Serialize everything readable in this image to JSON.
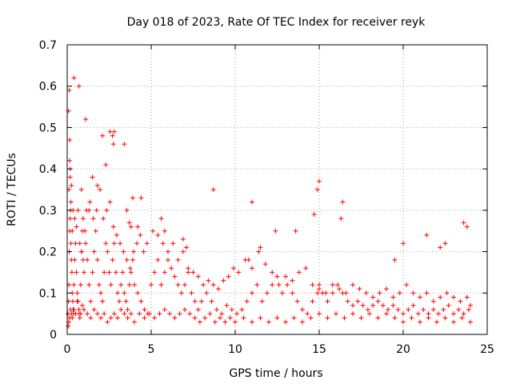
{
  "chart_data": {
    "type": "scatter",
    "title": "Day 018 of 2023, Rate Of TEC Index for receiver reyk",
    "xlabel": "GPS time / hours",
    "ylabel": "ROTI / TECUs",
    "xlim": [
      0,
      25
    ],
    "ylim": [
      0,
      0.7
    ],
    "xticks": [
      "0",
      "5",
      "10",
      "15",
      "20",
      "25"
    ],
    "yticks": [
      "0",
      "0.1",
      "0.2",
      "0.3",
      "0.4",
      "0.5",
      "0.6",
      "0.7"
    ],
    "grid": true,
    "marker": "+",
    "color": "#ff0000",
    "series": [
      {
        "x": [
          0.05,
          0.08,
          0.1,
          0.12,
          0.15,
          0.18,
          0.2,
          0.22,
          0.25,
          0.28,
          0.3,
          0.33,
          0.35,
          0.38,
          0.4,
          0.45,
          0.5,
          0.55,
          0.6,
          0.65,
          0.7,
          0.75,
          0.8,
          0.85,
          0.9,
          0.95,
          1.0,
          1.1,
          1.2,
          1.3,
          1.4,
          1.5,
          1.6,
          1.7,
          1.8,
          1.9,
          2.0,
          2.1,
          2.2,
          2.3,
          2.4,
          2.5,
          2.6,
          2.7,
          2.8,
          2.9,
          3.0,
          3.1,
          3.2,
          3.3,
          3.4,
          3.5,
          3.6,
          3.7,
          3.8,
          3.9,
          4.0,
          4.2,
          4.4,
          4.6,
          4.8,
          5.0,
          5.2,
          5.4,
          5.6,
          5.8,
          6.0,
          6.2,
          6.4,
          6.6,
          6.8,
          7.0,
          7.2,
          7.4,
          7.6,
          7.8,
          8.0,
          8.3,
          8.6,
          8.9,
          9.2,
          9.5,
          9.8,
          10.1,
          10.4,
          10.7,
          11.0,
          11.3,
          11.6,
          11.9,
          12.2,
          12.5,
          12.8,
          13.1,
          13.4,
          13.7,
          14.0,
          14.3,
          14.6,
          14.9,
          15.0,
          15.2,
          15.5,
          15.8,
          16.1,
          16.4,
          16.7,
          17.0,
          17.3,
          17.6,
          17.9,
          18.2,
          18.5,
          18.8,
          19.1,
          19.4,
          19.7,
          20.0,
          20.3,
          20.6,
          20.9,
          21.2,
          21.5,
          21.8,
          22.1,
          22.4,
          22.7,
          23.0,
          23.3,
          23.6,
          23.9,
          0.1,
          0.15,
          0.2,
          0.25,
          0.3,
          0.4,
          0.5,
          0.6,
          0.7,
          0.8,
          0.9,
          1.0,
          1.2,
          1.4,
          1.6,
          1.8,
          2.0,
          2.2,
          2.4,
          2.6,
          2.8,
          3.0,
          3.2,
          3.4,
          3.6,
          3.8,
          4.0,
          4.3,
          4.6,
          4.9,
          5.2,
          5.5,
          5.8,
          6.1,
          6.4,
          6.7,
          7.0,
          7.3,
          7.6,
          7.9,
          8.2,
          8.5,
          8.8,
          9.1,
          9.4,
          9.7,
          10.0,
          10.5,
          11.0,
          11.5,
          12.0,
          12.5,
          13.0,
          13.5,
          14.0,
          14.5,
          15.0,
          15.5,
          16.0,
          16.5,
          17.0,
          17.5,
          18.0,
          18.5,
          19.0,
          19.5,
          20.0,
          20.5,
          21.0,
          21.5,
          22.0,
          22.5,
          23.0,
          23.5,
          24.0,
          0.06,
          0.1,
          0.14,
          0.18,
          0.22,
          0.3,
          0.35,
          0.45,
          0.55,
          0.65,
          0.75,
          0.85,
          0.95,
          1.05,
          1.15,
          1.35,
          1.55,
          1.75,
          1.95,
          2.15,
          2.35,
          2.55,
          2.75,
          2.95,
          3.15,
          3.35,
          3.55,
          3.75,
          3.95,
          4.15,
          4.35,
          4.55,
          4.75,
          5.1,
          5.4,
          5.7,
          6.0,
          6.3,
          6.6,
          6.9,
          7.2,
          7.5,
          7.8,
          8.1,
          8.4,
          8.7,
          9.0,
          9.3,
          9.6,
          9.9,
          10.2,
          10.6,
          11.0,
          11.4,
          11.8,
          12.2,
          12.6,
          13.0,
          13.4,
          13.8,
          14.2,
          14.6,
          15.0,
          15.4,
          15.8,
          16.2,
          16.6,
          17.0,
          17.4,
          17.8,
          18.2,
          18.6,
          19.0,
          19.4,
          19.8,
          20.2,
          20.6,
          21.0,
          21.4,
          21.8,
          22.2,
          22.6,
          23.0,
          23.4,
          23.8,
          24.0,
          0.08,
          0.12,
          0.15,
          0.18,
          0.25,
          0.4,
          0.7,
          0.85,
          1.1,
          1.3,
          1.5,
          1.8,
          2.1,
          2.3,
          2.55,
          2.7,
          2.75,
          2.8,
          3.4,
          3.55,
          3.7,
          3.8,
          3.9,
          4.2,
          4.4,
          5.6,
          5.8,
          6.9,
          7.1,
          8.7,
          10.8,
          11.0,
          11.5,
          12.4,
          13.6,
          14.7,
          14.9,
          15.0,
          16.3,
          16.4,
          19.5,
          20.0,
          21.4,
          22.2,
          22.5,
          23.6,
          23.8
        ],
        "y": [
          0.05,
          0.08,
          0.12,
          0.2,
          0.25,
          0.28,
          0.3,
          0.22,
          0.18,
          0.15,
          0.1,
          0.08,
          0.06,
          0.05,
          0.12,
          0.18,
          0.22,
          0.15,
          0.1,
          0.08,
          0.05,
          0.04,
          0.12,
          0.2,
          0.25,
          0.18,
          0.15,
          0.22,
          0.18,
          0.12,
          0.08,
          0.15,
          0.2,
          0.25,
          0.18,
          0.12,
          0.1,
          0.08,
          0.15,
          0.22,
          0.2,
          0.15,
          0.12,
          0.18,
          0.22,
          0.15,
          0.1,
          0.08,
          0.12,
          0.15,
          0.1,
          0.08,
          0.06,
          0.12,
          0.15,
          0.18,
          0.12,
          0.1,
          0.08,
          0.06,
          0.05,
          0.12,
          0.15,
          0.18,
          0.12,
          0.15,
          0.18,
          0.16,
          0.14,
          0.12,
          0.1,
          0.12,
          0.15,
          0.1,
          0.08,
          0.06,
          0.08,
          0.1,
          0.08,
          0.06,
          0.05,
          0.07,
          0.06,
          0.05,
          0.06,
          0.08,
          0.1,
          0.12,
          0.08,
          0.1,
          0.12,
          0.14,
          0.1,
          0.12,
          0.1,
          0.08,
          0.06,
          0.05,
          0.08,
          0.1,
          0.12,
          0.1,
          0.08,
          0.1,
          0.12,
          0.1,
          0.08,
          0.07,
          0.08,
          0.07,
          0.06,
          0.07,
          0.08,
          0.07,
          0.06,
          0.07,
          0.06,
          0.05,
          0.06,
          0.07,
          0.05,
          0.06,
          0.05,
          0.06,
          0.05,
          0.06,
          0.07,
          0.05,
          0.06,
          0.05,
          0.06,
          0.03,
          0.04,
          0.06,
          0.05,
          0.04,
          0.06,
          0.05,
          0.08,
          0.06,
          0.05,
          0.07,
          0.06,
          0.05,
          0.04,
          0.06,
          0.05,
          0.04,
          0.05,
          0.03,
          0.04,
          0.05,
          0.04,
          0.06,
          0.05,
          0.04,
          0.05,
          0.03,
          0.05,
          0.04,
          0.05,
          0.04,
          0.05,
          0.06,
          0.05,
          0.04,
          0.05,
          0.06,
          0.05,
          0.04,
          0.03,
          0.04,
          0.05,
          0.03,
          0.04,
          0.03,
          0.04,
          0.03,
          0.04,
          0.03,
          0.04,
          0.03,
          0.04,
          0.03,
          0.04,
          0.03,
          0.04,
          0.05,
          0.04,
          0.05,
          0.04,
          0.05,
          0.04,
          0.05,
          0.04,
          0.05,
          0.04,
          0.03,
          0.04,
          0.03,
          0.04,
          0.03,
          0.04,
          0.03,
          0.04,
          0.03,
          0.02,
          0.35,
          0.42,
          0.38,
          0.32,
          0.25,
          0.3,
          0.28,
          0.26,
          0.3,
          0.22,
          0.2,
          0.28,
          0.25,
          0.3,
          0.32,
          0.28,
          0.3,
          0.35,
          0.28,
          0.3,
          0.32,
          0.26,
          0.24,
          0.22,
          0.2,
          0.18,
          0.16,
          0.2,
          0.22,
          0.24,
          0.2,
          0.22,
          0.25,
          0.24,
          0.22,
          0.2,
          0.22,
          0.18,
          0.2,
          0.16,
          0.15,
          0.14,
          0.12,
          0.13,
          0.12,
          0.11,
          0.13,
          0.14,
          0.16,
          0.15,
          0.18,
          0.16,
          0.2,
          0.17,
          0.15,
          0.12,
          0.14,
          0.13,
          0.15,
          0.16,
          0.12,
          0.11,
          0.1,
          0.12,
          0.11,
          0.1,
          0.12,
          0.11,
          0.1,
          0.09,
          0.1,
          0.11,
          0.09,
          0.1,
          0.12,
          0.1,
          0.09,
          0.1,
          0.08,
          0.09,
          0.1,
          0.09,
          0.08,
          0.09,
          0.07,
          0.54,
          0.59,
          0.47,
          0.4,
          0.36,
          0.62,
          0.6,
          0.35,
          0.52,
          0.3,
          0.38,
          0.36,
          0.48,
          0.41,
          0.49,
          0.48,
          0.46,
          0.49,
          0.46,
          0.3,
          0.27,
          0.26,
          0.33,
          0.26,
          0.33,
          0.28,
          0.25,
          0.23,
          0.21,
          0.35,
          0.18,
          0.32,
          0.21,
          0.25,
          0.25,
          0.29,
          0.35,
          0.37,
          0.28,
          0.32,
          0.18,
          0.22,
          0.24,
          0.21,
          0.22,
          0.27,
          0.26
        ]
      }
    ]
  }
}
